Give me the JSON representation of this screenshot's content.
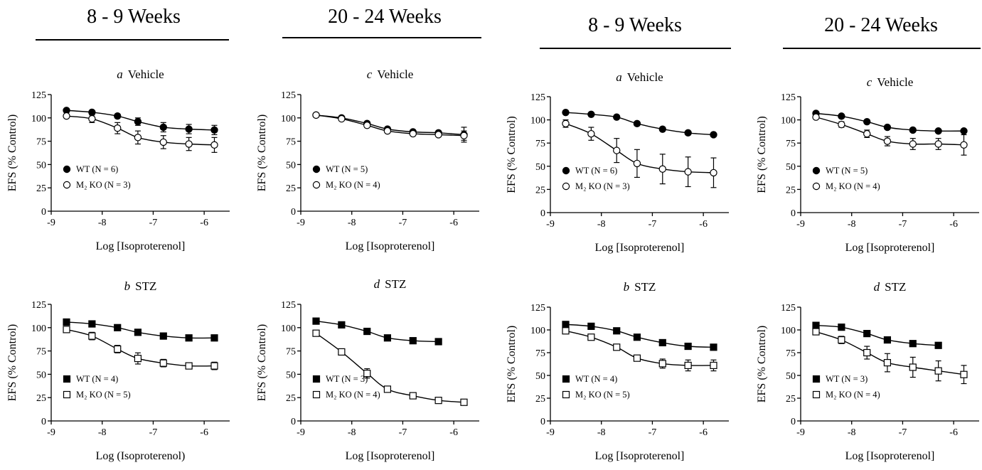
{
  "headers": [
    {
      "label": "8 - 9 Weeks"
    },
    {
      "label": "20 - 24 Weeks"
    },
    {
      "label": "8 - 9 Weeks"
    },
    {
      "label": "20 - 24 Weeks"
    }
  ],
  "chart_data": [
    {
      "type": "line",
      "panel": "a",
      "title": "Vehicle",
      "xlabel": "Log [Isoproterenol]",
      "ylabel": "EFS (% Control)",
      "xlim": [
        -9,
        -5.5
      ],
      "ylim": [
        0,
        125
      ],
      "xticks": [
        -9,
        -8,
        -7,
        -6
      ],
      "yticks": [
        0,
        25,
        50,
        75,
        100,
        125
      ],
      "legend": "bottom-left",
      "series": [
        {
          "name": "WT (N = 6)",
          "marker": "filled-circle",
          "x": [
            -8.7,
            -8.2,
            -7.7,
            -7.3,
            -6.8,
            -6.3,
            -5.8
          ],
          "y": [
            108,
            106,
            102,
            96,
            90,
            88,
            87
          ],
          "err": [
            1,
            1,
            2,
            4,
            5,
            5,
            5
          ]
        },
        {
          "name": "M₂ KO (N = 3)",
          "marker": "open-circle",
          "x": [
            -8.7,
            -8.2,
            -7.7,
            -7.3,
            -6.8,
            -6.3,
            -5.8
          ],
          "y": [
            102,
            99,
            89,
            79,
            74,
            72,
            71
          ],
          "err": [
            2,
            4,
            6,
            7,
            7,
            7,
            8
          ]
        }
      ]
    },
    {
      "type": "line",
      "panel": "c",
      "title": "Vehicle",
      "xlabel": "Log [Isoproterenol]",
      "ylabel": "EFS (% Control)",
      "xlim": [
        -9,
        -5.5
      ],
      "ylim": [
        0,
        125
      ],
      "xticks": [
        -9,
        -8,
        -7,
        -6
      ],
      "yticks": [
        0,
        25,
        50,
        75,
        100,
        125
      ],
      "legend": "bottom-left",
      "series": [
        {
          "name": "WT (N = 5)",
          "marker": "filled-circle",
          "x": [
            -8.7,
            -8.2,
            -7.7,
            -7.3,
            -6.8,
            -6.3,
            -5.8
          ],
          "y": [
            103,
            100,
            94,
            88,
            85,
            84,
            82
          ],
          "err": [
            1,
            1,
            1,
            1,
            1,
            2,
            8
          ]
        },
        {
          "name": "M₂ KO (N = 4)",
          "marker": "open-circle",
          "x": [
            -8.7,
            -8.2,
            -7.7,
            -7.3,
            -6.8,
            -6.3,
            -5.8
          ],
          "y": [
            103,
            99,
            92,
            86,
            83,
            82,
            81
          ],
          "err": [
            1,
            1,
            2,
            1,
            2,
            2,
            5
          ]
        }
      ]
    },
    {
      "type": "line",
      "panel": "a",
      "title": "Vehicle",
      "xlabel": "Log [Isoproterenol]",
      "ylabel": "EFS (% Control)",
      "xlim": [
        -9,
        -5.5
      ],
      "ylim": [
        0,
        125
      ],
      "xticks": [
        -9,
        -8,
        -7,
        -6
      ],
      "yticks": [
        0,
        25,
        50,
        75,
        100,
        125
      ],
      "legend": "bottom-left",
      "series": [
        {
          "name": "WT (N = 6)",
          "marker": "filled-circle",
          "x": [
            -8.7,
            -8.2,
            -7.7,
            -7.3,
            -6.8,
            -6.3,
            -5.8
          ],
          "y": [
            108,
            106,
            103,
            96,
            90,
            86,
            84
          ],
          "err": [
            1,
            1,
            1,
            1,
            1,
            1,
            2
          ]
        },
        {
          "name": "M₂ KO (N = 3)",
          "marker": "open-circle",
          "x": [
            -8.7,
            -8.2,
            -7.7,
            -7.3,
            -6.8,
            -6.3,
            -5.8
          ],
          "y": [
            96,
            85,
            67,
            53,
            47,
            44,
            43
          ],
          "err": [
            4,
            7,
            13,
            15,
            16,
            16,
            16
          ]
        }
      ]
    },
    {
      "type": "line",
      "panel": "c",
      "title": "Vehicle",
      "xlabel": "Log [Isoproterenol]",
      "ylabel": "EFS (% Control)",
      "xlim": [
        -9,
        -5.5
      ],
      "ylim": [
        0,
        125
      ],
      "xticks": [
        -9,
        -8,
        -7,
        -6
      ],
      "yticks": [
        0,
        25,
        50,
        75,
        100,
        125
      ],
      "legend": "bottom-left",
      "series": [
        {
          "name": "WT (N = 5)",
          "marker": "filled-circle",
          "x": [
            -8.7,
            -8.2,
            -7.7,
            -7.3,
            -6.8,
            -6.3,
            -5.8
          ],
          "y": [
            107,
            104,
            98,
            92,
            89,
            88,
            88
          ],
          "err": [
            1,
            1,
            1,
            1,
            1,
            1,
            1
          ]
        },
        {
          "name": "M₂ KO (N = 4)",
          "marker": "open-circle",
          "x": [
            -8.7,
            -8.2,
            -7.7,
            -7.3,
            -6.8,
            -6.3,
            -5.8
          ],
          "y": [
            103,
            95,
            85,
            77,
            74,
            74,
            73
          ],
          "err": [
            1,
            3,
            4,
            5,
            6,
            6,
            11
          ]
        }
      ]
    },
    {
      "type": "line",
      "panel": "b",
      "title": "STZ",
      "xlabel": "Log (Isoproterenol)",
      "ylabel": "EFS (% Control)",
      "xlim": [
        -9,
        -5.5
      ],
      "ylim": [
        0,
        125
      ],
      "xticks": [
        -9,
        -8,
        -7,
        -6
      ],
      "yticks": [
        0,
        25,
        50,
        75,
        100,
        125
      ],
      "legend": "bottom-left",
      "series": [
        {
          "name": "WT (N = 4)",
          "marker": "filled-square",
          "x": [
            -8.7,
            -8.2,
            -7.7,
            -7.3,
            -6.8,
            -6.3,
            -5.8
          ],
          "y": [
            106,
            104,
            100,
            95,
            91,
            89,
            89
          ],
          "err": [
            1,
            1,
            1,
            1,
            1,
            1,
            1
          ]
        },
        {
          "name": "M₂ KO (N = 5)",
          "marker": "open-square",
          "x": [
            -8.7,
            -8.2,
            -7.7,
            -7.3,
            -6.8,
            -6.3,
            -5.8
          ],
          "y": [
            98,
            91,
            77,
            67,
            62,
            59,
            59
          ],
          "err": [
            2,
            4,
            4,
            6,
            4,
            3,
            4
          ]
        }
      ]
    },
    {
      "type": "line",
      "panel": "d",
      "title": "STZ",
      "xlabel": "Log [Isoproterenol]",
      "ylabel": "EFS (% Control)",
      "xlim": [
        -9,
        -5.5
      ],
      "ylim": [
        0,
        125
      ],
      "xticks": [
        -9,
        -8,
        -7,
        -6
      ],
      "yticks": [
        0,
        25,
        50,
        75,
        100,
        125
      ],
      "legend": "bottom-left",
      "series": [
        {
          "name": "WT (N = 3)",
          "marker": "filled-square",
          "x": [
            -8.7,
            -8.2,
            -7.7,
            -7.3,
            -6.8,
            -6.3
          ],
          "y": [
            107,
            103,
            96,
            89,
            86,
            85
          ],
          "err": [
            1,
            1,
            1,
            1,
            1,
            1
          ]
        },
        {
          "name": "M₂ KO (N = 4)",
          "marker": "open-square",
          "x": [
            -8.7,
            -8.2,
            -7.7,
            -7.3,
            -6.8,
            -6.3,
            -5.8
          ],
          "y": [
            94,
            74,
            51,
            34,
            27,
            22,
            20
          ],
          "err": [
            1,
            3,
            5,
            3,
            1,
            1,
            1
          ]
        }
      ]
    },
    {
      "type": "line",
      "panel": "b",
      "title": "STZ",
      "xlabel": "Log [Isoproterenol]",
      "ylabel": "EFS (% Control)",
      "xlim": [
        -9,
        -5.5
      ],
      "ylim": [
        0,
        125
      ],
      "xticks": [
        -9,
        -8,
        -7,
        -6
      ],
      "yticks": [
        0,
        25,
        50,
        75,
        100,
        125
      ],
      "legend": "bottom-left",
      "series": [
        {
          "name": "WT (N = 4)",
          "marker": "filled-square",
          "x": [
            -8.7,
            -8.2,
            -7.7,
            -7.3,
            -6.8,
            -6.3,
            -5.8
          ],
          "y": [
            106,
            104,
            99,
            92,
            86,
            82,
            81
          ],
          "err": [
            1,
            1,
            1,
            1,
            1,
            1,
            1
          ]
        },
        {
          "name": "M₂ KO (N = 5)",
          "marker": "open-square",
          "x": [
            -8.7,
            -8.2,
            -7.7,
            -7.3,
            -6.8,
            -6.3,
            -5.8
          ],
          "y": [
            99,
            92,
            81,
            69,
            63,
            61,
            61
          ],
          "err": [
            2,
            2,
            2,
            3,
            5,
            6,
            6
          ]
        }
      ]
    },
    {
      "type": "line",
      "panel": "d",
      "title": "STZ",
      "xlabel": "Log [Isoproterenol]",
      "ylabel": "EFS (% Control)",
      "xlim": [
        -9,
        -5.5
      ],
      "ylim": [
        0,
        125
      ],
      "xticks": [
        -9,
        -8,
        -7,
        -6
      ],
      "yticks": [
        0,
        25,
        50,
        75,
        100,
        125
      ],
      "legend": "bottom-left",
      "series": [
        {
          "name": "WT (N = 3)",
          "marker": "filled-square",
          "x": [
            -8.7,
            -8.2,
            -7.7,
            -7.3,
            -6.8,
            -6.3
          ],
          "y": [
            105,
            103,
            96,
            89,
            85,
            83
          ],
          "err": [
            1,
            1,
            1,
            1,
            1,
            1
          ]
        },
        {
          "name": "M₂ KO (N = 4)",
          "marker": "open-square",
          "x": [
            -8.7,
            -8.2,
            -7.7,
            -7.3,
            -6.8,
            -6.3,
            -5.8
          ],
          "y": [
            98,
            89,
            75,
            64,
            59,
            55,
            51
          ],
          "err": [
            2,
            4,
            7,
            10,
            11,
            11,
            10
          ]
        }
      ]
    }
  ]
}
